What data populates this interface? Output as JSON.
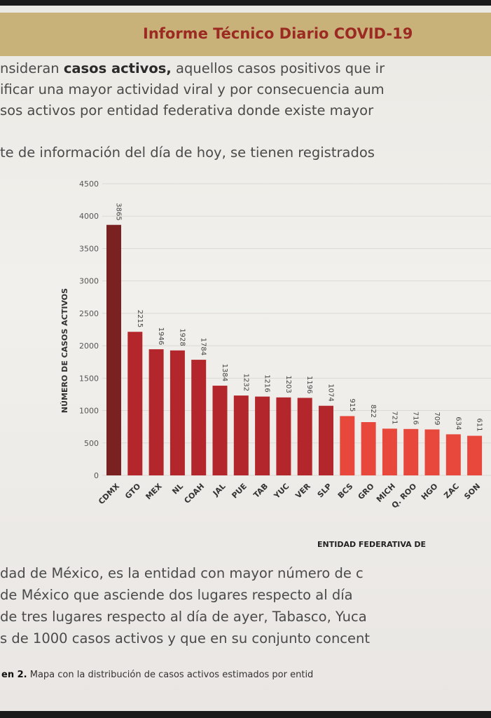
{
  "header": {
    "title": "Informe Técnico Diario COVID-19"
  },
  "intro": {
    "line1_pre": "nsideran ",
    "line1_bold": "casos activos,",
    "line1_post": " aquellos casos positivos que ir",
    "line2": "ificar una mayor actividad viral y por consecuencia aum",
    "line3": "sos activos por entidad federativa donde existe mayor",
    "line4": "te de información del día de hoy, se tienen registrados"
  },
  "body": {
    "line1": "dad de México, es la entidad con mayor número de c",
    "line2": " de México que asciende dos lugares respecto al día",
    "line3": "de tres lugares respecto al día de ayer, Tabasco, Yuca",
    "line4": "s de 1000 casos activos y que en su conjunto concent"
  },
  "caption": {
    "bold": "en 2.",
    "text": " Mapa con la distribución de casos activos estimados por entid"
  },
  "chart_data": {
    "type": "bar",
    "title": "",
    "xlabel": "ENTIDAD FEDERATIVA DE",
    "ylabel": "NÚMERO DE CASOS ACTIVOS",
    "ylim": [
      0,
      4500
    ],
    "yticks": [
      0,
      500,
      1000,
      1500,
      2000,
      2500,
      3000,
      3500,
      4000,
      4500
    ],
    "grid": true,
    "categories": [
      "CDMX",
      "GTO",
      "MEX",
      "NL",
      "COAH",
      "JAL",
      "PUE",
      "TAB",
      "YUC",
      "VER",
      "SLP",
      "BCS",
      "GRO",
      "MICH",
      "Q. ROO",
      "HGO",
      "ZAC",
      "SON"
    ],
    "values": [
      3865,
      2215,
      1946,
      1928,
      1784,
      1384,
      1232,
      1216,
      1203,
      1196,
      1074,
      915,
      822,
      721,
      716,
      709,
      634,
      611
    ],
    "colors": {
      "top": "#7a2222",
      "high": "#b3262b",
      "medium": "#e8473b"
    },
    "color_groups": [
      "top",
      "high",
      "high",
      "high",
      "high",
      "high",
      "high",
      "high",
      "high",
      "high",
      "high",
      "medium",
      "medium",
      "medium",
      "medium",
      "medium",
      "medium",
      "medium"
    ]
  }
}
